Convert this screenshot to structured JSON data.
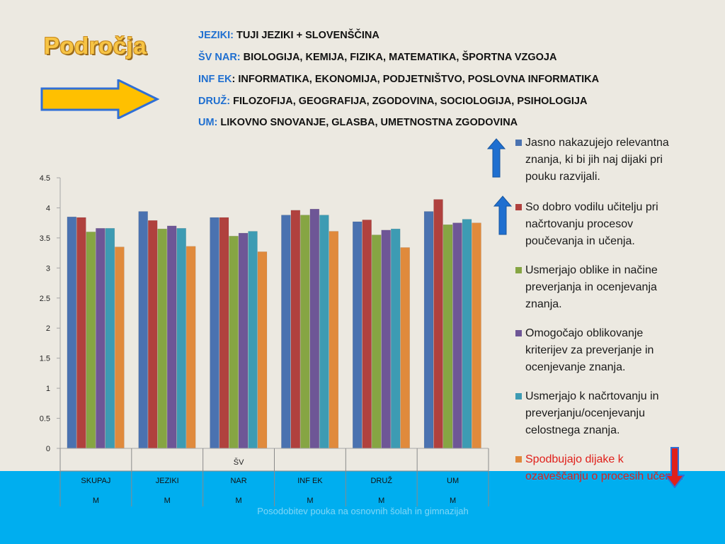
{
  "slide": {
    "title": "Področja",
    "subjects": [
      {
        "key": "JEZIKI:",
        "value": " TUJI JEZIKI + SLOVENŠČINA"
      },
      {
        "key": "ŠV NAR:",
        "value": " BIOLOGIJA, KEMIJA, FIZIKA, MATEMATIKA, ŠPORTNA VZGOJA"
      },
      {
        "key": " INF EK",
        "value": ": INFORMATIKA, EKONOMIJA, PODJETNIŠTVO, POSLOVNA INFORMATIKA"
      },
      {
        "key": "DRUŽ:",
        "value": " FILOZOFIJA, GEOGRAFIJA, ZGODOVINA, SOCIOLOGIJA, PSIHOLOGIJA"
      },
      {
        "key": "UM:",
        "value": " LIKOVNO SNOVANJE, GLASBA, UMETNOSTNA ZGODOVINA"
      }
    ],
    "footer": "Posodobitev pouka na osnovnih šolah in gimnazijah",
    "icons": {
      "arrow_right": "arrow-right-icon",
      "arrow_up": "arrow-up-icon",
      "arrow_down": "arrow-down-icon"
    }
  },
  "chart_data": {
    "type": "bar",
    "categories": [
      {
        "top": "",
        "middle": "SKUPAJ",
        "bottom": "M"
      },
      {
        "top": "",
        "middle": "JEZIKI",
        "bottom": "M"
      },
      {
        "top": "ŠV",
        "middle": "NAR",
        "bottom": "M"
      },
      {
        "top": "",
        "middle": "INF EK",
        "bottom": "M"
      },
      {
        "top": "",
        "middle": "DRUŽ",
        "bottom": "M"
      },
      {
        "top": "",
        "middle": "UM",
        "bottom": "M"
      }
    ],
    "ylim": [
      0,
      4.5
    ],
    "yticks": [
      "0",
      "0.5",
      "1",
      "1.5",
      "2",
      "2.5",
      "3",
      "3.5",
      "4",
      "4.5"
    ],
    "series": [
      {
        "name": "Jasno nakazujejo relevantna znanja, ki bi jih naj dijaki pri pouku razvijali.",
        "color": "#4a72b0",
        "values": [
          3.85,
          3.94,
          3.84,
          3.88,
          3.77,
          3.94
        ]
      },
      {
        "name": "So dobro vodilu učitelju pri načrtovanju procesov poučevanja in učenja.",
        "color": "#b0413e",
        "values": [
          3.84,
          3.79,
          3.84,
          3.96,
          3.8,
          4.14
        ]
      },
      {
        "name": "Usmerjajo oblike in načine preverjanja in ocenjevanja znanja.",
        "color": "#86a543",
        "values": [
          3.6,
          3.65,
          3.53,
          3.88,
          3.55,
          3.72
        ]
      },
      {
        "name": "Omogočajo oblikovanje kriterijev za preverjanje in ocenjevanje znanja.",
        "color": "#6e5696",
        "values": [
          3.66,
          3.7,
          3.58,
          3.98,
          3.63,
          3.75
        ]
      },
      {
        "name": "Usmerjajo k načrtovanju in preverjanju/ocenjevanju celostnega znanja.",
        "color": "#3d9bb3",
        "values": [
          3.66,
          3.66,
          3.61,
          3.88,
          3.65,
          3.81
        ]
      },
      {
        "name": "Spodbujajo dijake k ozaveščanju o procesih učenja.",
        "color": "#e08a3c",
        "highlight_color": "#e0201b",
        "values": [
          3.35,
          3.36,
          3.27,
          3.61,
          3.34,
          3.75
        ]
      }
    ],
    "legend_position": "right",
    "grid": false
  }
}
